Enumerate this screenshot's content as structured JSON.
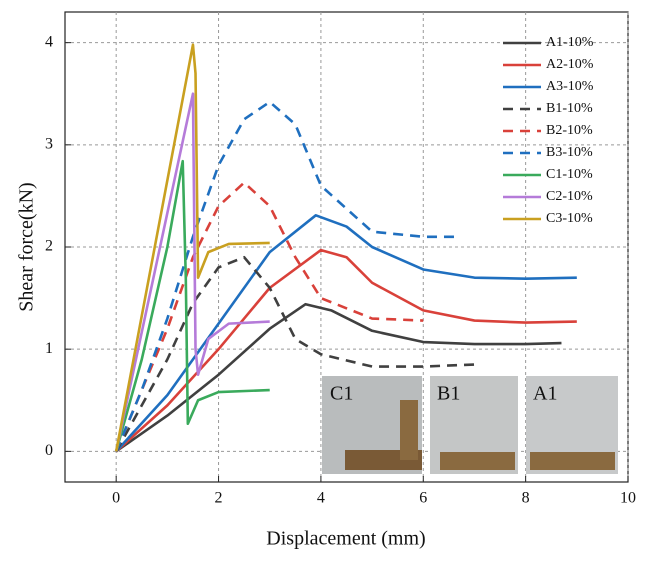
{
  "chart_data": {
    "type": "line",
    "xlabel": "Displacement (mm)",
    "ylabel": "Shear force(kN)",
    "xlim": [
      -1,
      10
    ],
    "ylim": [
      -0.3,
      4.3
    ],
    "xticks": [
      0,
      2,
      4,
      6,
      8,
      10
    ],
    "yticks": [
      0,
      1,
      2,
      3,
      4
    ],
    "grid": true,
    "legend": "upper right",
    "annotations": [
      "C1",
      "B1",
      "A1"
    ],
    "series": [
      {
        "name": "A1-10%",
        "color": "#404040",
        "dash": false,
        "x": [
          0,
          1,
          2,
          3,
          3.7,
          4.2,
          5,
          6,
          7,
          8,
          8.7
        ],
        "values": [
          0,
          0.35,
          0.75,
          1.2,
          1.44,
          1.38,
          1.18,
          1.07,
          1.05,
          1.05,
          1.06
        ]
      },
      {
        "name": "A2-10%",
        "color": "#d9413a",
        "dash": false,
        "x": [
          0,
          1,
          2,
          3,
          4,
          4.5,
          5,
          6,
          7,
          8,
          9
        ],
        "values": [
          0,
          0.45,
          1.0,
          1.6,
          1.97,
          1.9,
          1.65,
          1.38,
          1.28,
          1.26,
          1.27
        ]
      },
      {
        "name": "A3-10%",
        "color": "#1f6fbf",
        "dash": false,
        "x": [
          0,
          1,
          2,
          3,
          3.9,
          4.5,
          5,
          6,
          7,
          8,
          9
        ],
        "values": [
          0,
          0.55,
          1.25,
          1.95,
          2.31,
          2.2,
          2.0,
          1.78,
          1.7,
          1.69,
          1.7
        ]
      },
      {
        "name": "B1-10%",
        "color": "#404040",
        "dash": true,
        "x": [
          0,
          1,
          1.5,
          2,
          2.5,
          3,
          3.5,
          4,
          5,
          6,
          7
        ],
        "values": [
          0,
          0.9,
          1.45,
          1.8,
          1.9,
          1.6,
          1.1,
          0.95,
          0.83,
          0.83,
          0.85
        ]
      },
      {
        "name": "B2-10%",
        "color": "#d9413a",
        "dash": true,
        "x": [
          0,
          0.5,
          1,
          1.5,
          2,
          2.5,
          3,
          3.5,
          4,
          5,
          6
        ],
        "values": [
          0,
          0.6,
          1.2,
          1.9,
          2.4,
          2.63,
          2.4,
          1.9,
          1.5,
          1.3,
          1.28
        ]
      },
      {
        "name": "B3-10%",
        "color": "#1f6fbf",
        "dash": true,
        "x": [
          0,
          0.5,
          1,
          1.5,
          2,
          2.5,
          3,
          3.5,
          4,
          5,
          6,
          6.6
        ],
        "values": [
          0,
          0.6,
          1.3,
          2.1,
          2.8,
          3.25,
          3.42,
          3.2,
          2.6,
          2.15,
          2.1,
          2.1
        ]
      },
      {
        "name": "C1-10%",
        "color": "#3aaa5c",
        "dash": false,
        "x": [
          0,
          0.5,
          1,
          1.3,
          1.36,
          1.4,
          1.6,
          2,
          3
        ],
        "values": [
          0,
          0.9,
          2.0,
          2.84,
          1.7,
          0.27,
          0.5,
          0.58,
          0.6
        ]
      },
      {
        "name": "C2-10%",
        "color": "#b57bd9",
        "dash": false,
        "x": [
          0,
          1.5,
          1.55,
          1.6,
          1.8,
          2.2,
          3
        ],
        "values": [
          0,
          3.5,
          1.0,
          0.75,
          1.1,
          1.25,
          1.27
        ]
      },
      {
        "name": "C3-10%",
        "color": "#c9a020",
        "dash": false,
        "x": [
          0,
          1.5,
          1.55,
          1.6,
          1.8,
          2.2,
          3
        ],
        "values": [
          0,
          3.98,
          3.7,
          1.7,
          1.95,
          2.03,
          2.04
        ]
      }
    ]
  }
}
